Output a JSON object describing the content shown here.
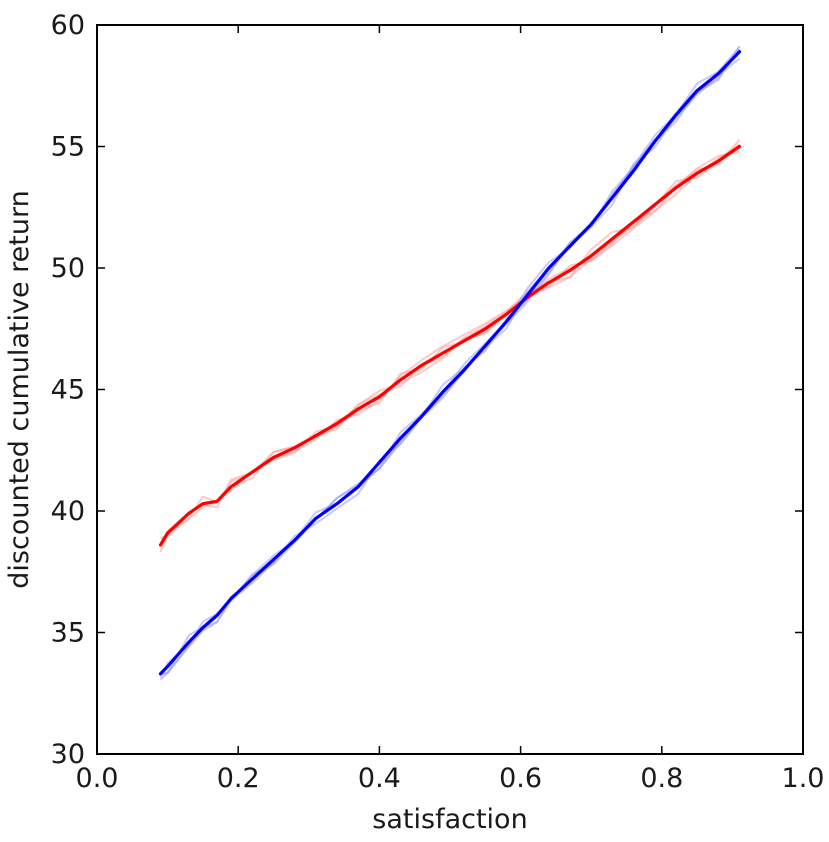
{
  "chart_data": {
    "type": "line",
    "title": "",
    "xlabel": "satisfaction",
    "ylabel": "discounted cumulative return",
    "xlim": [
      0.0,
      1.0
    ],
    "ylim": [
      30,
      60
    ],
    "xticks": [
      0.0,
      0.2,
      0.4,
      0.6,
      0.8,
      1.0
    ],
    "xtick_labels": [
      "0.0",
      "0.2",
      "0.4",
      "0.6",
      "0.8",
      "1.0"
    ],
    "yticks": [
      30,
      35,
      40,
      45,
      50,
      55,
      60
    ],
    "ytick_labels": [
      "30",
      "35",
      "40",
      "45",
      "50",
      "55",
      "60"
    ],
    "grid": false,
    "legend": "none",
    "series": [
      {
        "color": "#ff0000",
        "faint_color": "#ff9a9a",
        "x": [
          0.09,
          0.1,
          0.13,
          0.15,
          0.17,
          0.19,
          0.22,
          0.25,
          0.28,
          0.31,
          0.34,
          0.37,
          0.4,
          0.43,
          0.46,
          0.49,
          0.52,
          0.55,
          0.58,
          0.61,
          0.64,
          0.67,
          0.7,
          0.73,
          0.76,
          0.79,
          0.82,
          0.85,
          0.88,
          0.91
        ],
        "values": [
          38.6,
          39.1,
          39.9,
          40.3,
          40.4,
          41.0,
          41.6,
          42.2,
          42.6,
          43.1,
          43.6,
          44.2,
          44.7,
          45.4,
          46.0,
          46.5,
          47.0,
          47.5,
          48.1,
          48.8,
          49.4,
          49.9,
          50.5,
          51.2,
          51.9,
          52.6,
          53.3,
          53.9,
          54.4,
          55.0
        ]
      },
      {
        "color": "#0000ff",
        "faint_color": "#9a9aff",
        "x": [
          0.09,
          0.1,
          0.13,
          0.15,
          0.17,
          0.19,
          0.22,
          0.25,
          0.28,
          0.31,
          0.34,
          0.37,
          0.4,
          0.43,
          0.46,
          0.49,
          0.52,
          0.55,
          0.58,
          0.61,
          0.64,
          0.67,
          0.7,
          0.73,
          0.76,
          0.79,
          0.82,
          0.85,
          0.88,
          0.91
        ],
        "values": [
          33.3,
          33.6,
          34.6,
          35.2,
          35.7,
          36.4,
          37.2,
          38.0,
          38.8,
          39.7,
          40.3,
          41.0,
          42.0,
          43.0,
          43.9,
          44.9,
          45.8,
          46.8,
          47.8,
          48.9,
          50.0,
          50.9,
          51.8,
          52.9,
          54.0,
          55.2,
          56.3,
          57.3,
          58.0,
          58.9
        ]
      }
    ]
  }
}
